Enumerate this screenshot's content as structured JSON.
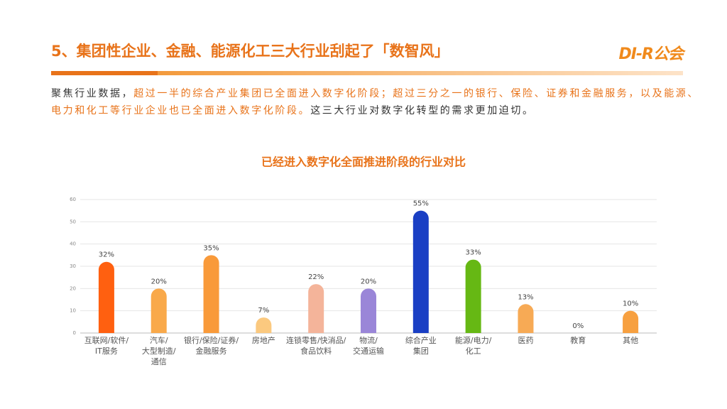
{
  "header": {
    "title": "5、集团性企业、金融、能源化工三大行业刮起了「数智风」",
    "logo": "DI-R公会"
  },
  "description": [
    {
      "text": "聚焦行业数据，",
      "color": "#333333"
    },
    {
      "text": "超过一半的综合产业集团已全面进入数字化阶段；超过三分之一的银行、保险、证券和金融服务，以及能源、电力和化工等行业企业也已全面进入数字化阶段。",
      "color": "#e8731a"
    },
    {
      "text": "这三大行业对数字化转型的需求更加迫切。",
      "color": "#333333"
    }
  ],
  "chart_data": {
    "type": "bar",
    "title": "已经进入数字化全面推进阶段的行业对比",
    "categories": [
      [
        "互联网/软件/",
        "IT服务"
      ],
      [
        "汽车/",
        "大型制造/",
        "通信"
      ],
      [
        "银行/保险/证券/",
        "金融服务"
      ],
      [
        "房地产"
      ],
      [
        "连锁零售/快消品/",
        "食品饮料"
      ],
      [
        "物流/",
        "交通运输"
      ],
      [
        "综合产业",
        "集团"
      ],
      [
        "能源/电力/",
        "化工"
      ],
      [
        "医药"
      ],
      [
        "教育"
      ],
      [
        "其他"
      ]
    ],
    "values": [
      32,
      20,
      35,
      7,
      22,
      20,
      55,
      33,
      13,
      0,
      10
    ],
    "value_labels": [
      "32%",
      "20%",
      "35%",
      "7%",
      "22%",
      "20%",
      "55%",
      "33%",
      "13%",
      "0%",
      "10%"
    ],
    "colors": [
      "#ff6010",
      "#f9a94a",
      "#f99a3a",
      "#fbc97f",
      "#f4b49a",
      "#9a86d8",
      "#1a3fc4",
      "#66b814",
      "#f7aa55",
      "#f7aa55",
      "#f7a040"
    ],
    "ylim": [
      0,
      60
    ],
    "yticks": [
      0,
      10,
      20,
      30,
      40,
      50,
      60
    ],
    "grid": true
  }
}
